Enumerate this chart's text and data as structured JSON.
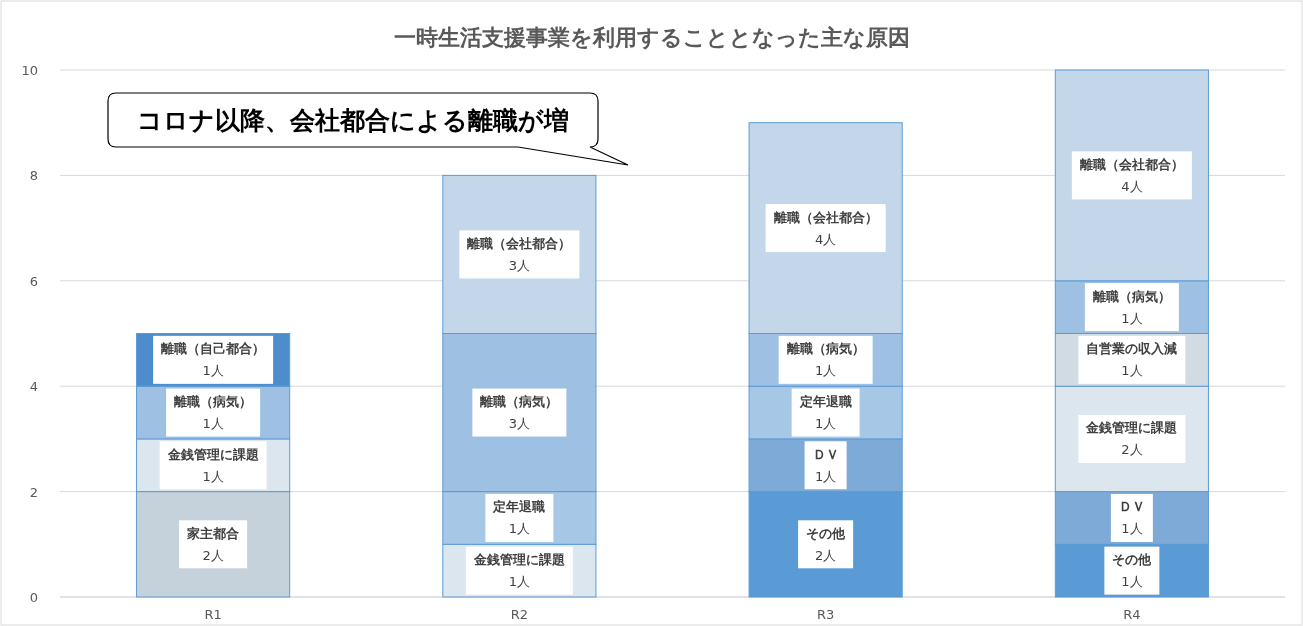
{
  "chart_data": {
    "type": "bar",
    "stacked": true,
    "title": "一時生活支援事業を利用することとなった主な原因",
    "categories": [
      "R1",
      "R2",
      "R3",
      "R4"
    ],
    "series": [
      {
        "name": "その他",
        "color": "#5b9bd5",
        "values": [
          null,
          null,
          2,
          1
        ],
        "value_labels": [
          null,
          null,
          "2人",
          "1人"
        ]
      },
      {
        "name": "ＤＶ",
        "color": "#7eaad8",
        "values": [
          null,
          null,
          1,
          1
        ],
        "value_labels": [
          null,
          null,
          "1人",
          "1人"
        ]
      },
      {
        "name": "家主都合",
        "color": "#c5d2dc",
        "values": [
          2,
          null,
          null,
          null
        ],
        "value_labels": [
          "2人",
          null,
          null,
          null
        ]
      },
      {
        "name": "金銭管理に課題",
        "color": "#dce6ee",
        "values": [
          1,
          1,
          null,
          2
        ],
        "value_labels": [
          "1人",
          "1人",
          null,
          "2人"
        ]
      },
      {
        "name": "定年退職",
        "color": "#a7c7e6",
        "values": [
          null,
          1,
          1,
          null
        ],
        "value_labels": [
          null,
          "1人",
          "1人",
          null
        ]
      },
      {
        "name": "自営業の収入減",
        "color": "#d0dbe4",
        "values": [
          null,
          null,
          null,
          1
        ],
        "value_labels": [
          null,
          null,
          null,
          "1人"
        ]
      },
      {
        "name": "離職（病気）",
        "color": "#9ec1e3",
        "values": [
          1,
          3,
          1,
          1
        ],
        "value_labels": [
          "1人",
          "3人",
          "1人",
          "1人"
        ]
      },
      {
        "name": "離職（自己都合）",
        "color": "#4e8dcb",
        "values": [
          1,
          null,
          null,
          null
        ],
        "value_labels": [
          "1人",
          null,
          null,
          null
        ]
      },
      {
        "name": "離職（会社都合）",
        "color": "#c4d7ea",
        "values": [
          null,
          3,
          4,
          4
        ],
        "value_labels": [
          null,
          "3人",
          "4人",
          "4人"
        ]
      }
    ],
    "ylim": [
      0,
      10
    ],
    "yticks": [
      0,
      2,
      4,
      6,
      8,
      10
    ],
    "grid": "y",
    "annotations": [
      "コロナ以降、会社都合による離職が増"
    ]
  }
}
